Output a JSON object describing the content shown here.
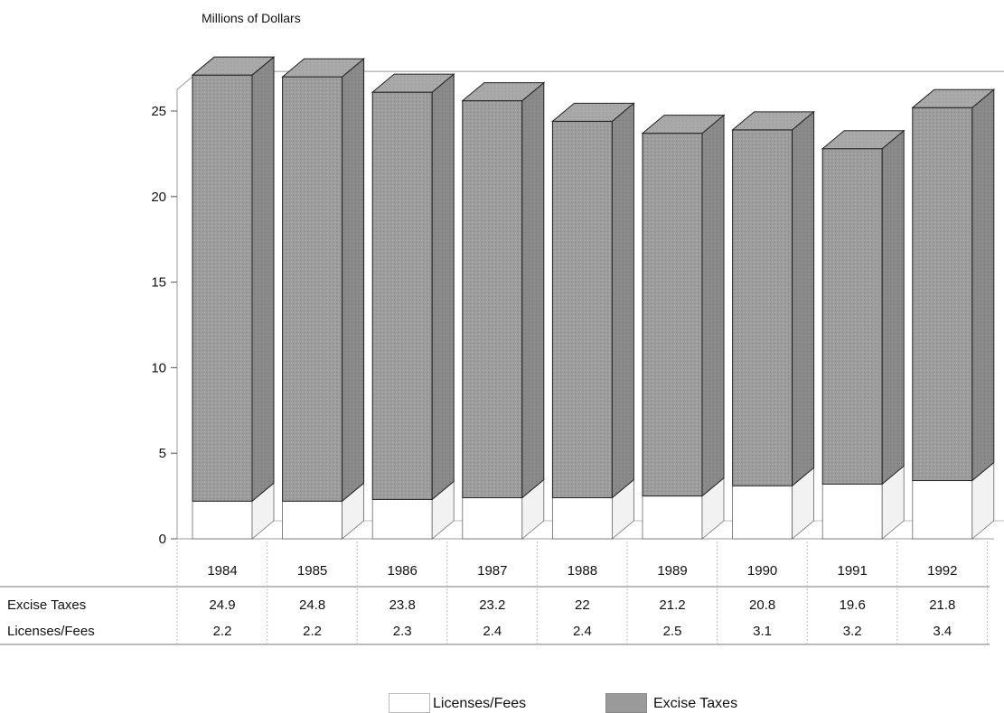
{
  "chart_data": {
    "type": "bar",
    "stacked": true,
    "style": "3d",
    "ylabel": "Millions of Dollars",
    "ylim": [
      0,
      27
    ],
    "yticks": [
      0,
      5,
      10,
      15,
      20,
      25
    ],
    "categories": [
      "1984",
      "1985",
      "1986",
      "1987",
      "1988",
      "1989",
      "1990",
      "1991",
      "1992"
    ],
    "series": [
      {
        "name": "Licenses/Fees",
        "values": [
          2.2,
          2.2,
          2.3,
          2.4,
          2.4,
          2.5,
          3.1,
          3.2,
          3.4
        ],
        "value_labels": [
          "2.2",
          "2.2",
          "2.3",
          "2.4",
          "2.4",
          "2.5",
          "3.1",
          "3.2",
          "3.4"
        ],
        "color": "#ffffff"
      },
      {
        "name": "Excise Taxes",
        "values": [
          24.9,
          24.8,
          23.8,
          23.2,
          22,
          21.2,
          20.8,
          19.6,
          21.8
        ],
        "value_labels": [
          "24.9",
          "24.8",
          "23.8",
          "23.2",
          "22",
          "21.2",
          "20.8",
          "19.6",
          "21.8"
        ],
        "color": "#9a9a9a"
      }
    ],
    "table_rows": [
      "Excise Taxes",
      "Licenses/Fees"
    ],
    "legend": {
      "position": "bottom",
      "items": [
        "Licenses/Fees",
        "Excise Taxes"
      ]
    },
    "grid": false
  }
}
